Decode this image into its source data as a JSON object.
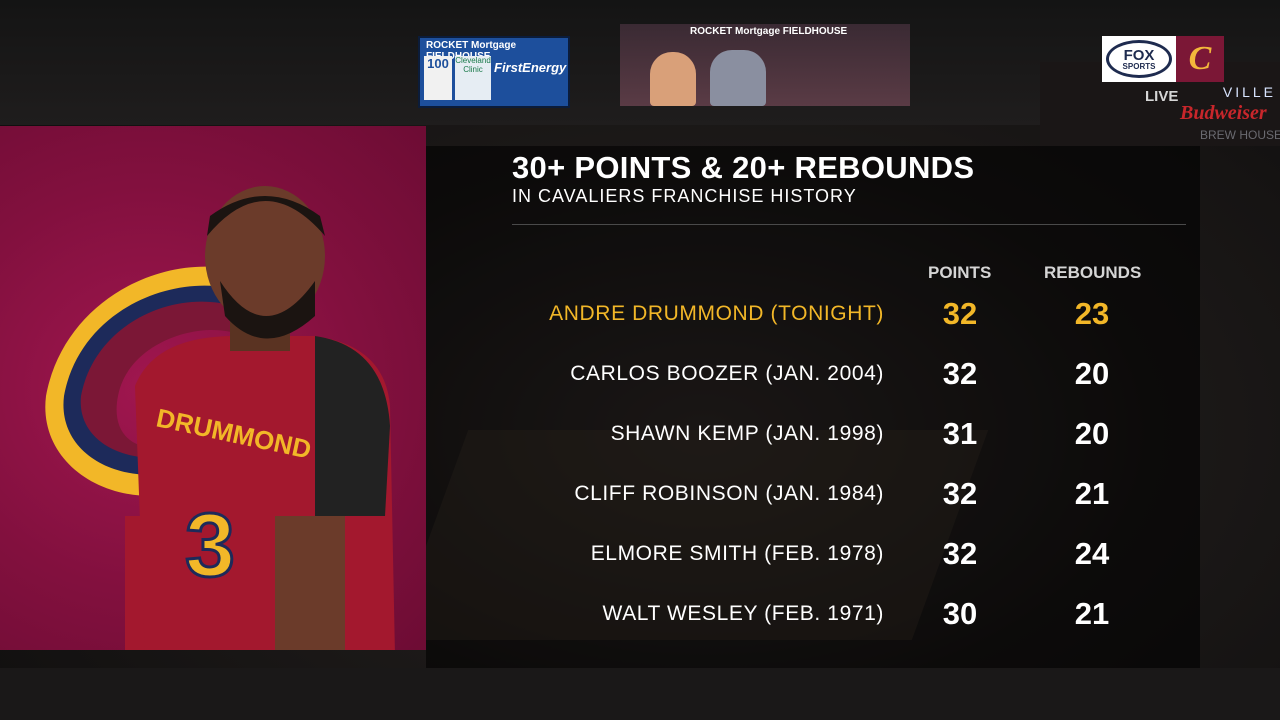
{
  "broadcast": {
    "network": "FOX SPORTS",
    "network_line1": "FOX",
    "network_line2": "SPORTS",
    "team_logo": "cavaliers-c-logo",
    "status": "LIVE"
  },
  "arena_signage": {
    "jumbotron_left": "ROCKET Mortgage FIELDHOUSE",
    "jumbotron_left_100": "100",
    "jumbotron_left_clinic": "Cleveland Clinic",
    "jumbotron_left_sponsor": "FirstEnergy",
    "jumbotron_right": "ROCKET Mortgage FIELDHOUSE",
    "wall_sign": "VILLE",
    "budweiser": "Budweiser",
    "brew_house": "BREW HOUSE"
  },
  "graphic": {
    "title": "30+ POINTS & 20+ REBOUNDS",
    "subtitle": "IN CAVALIERS FRANCHISE HISTORY",
    "columns": [
      "POINTS",
      "REBOUNDS"
    ],
    "highlight_color": "#f2b728",
    "panel_color": "#82103e",
    "rows": [
      {
        "name": "ANDRE DRUMMOND (TONIGHT)",
        "points": "32",
        "rebounds": "23",
        "highlight": true
      },
      {
        "name": "CARLOS BOOZER (JAN. 2004)",
        "points": "32",
        "rebounds": "20"
      },
      {
        "name": "SHAWN KEMP (JAN. 1998)",
        "points": "31",
        "rebounds": "20"
      },
      {
        "name": "CLIFF ROBINSON (JAN. 1984)",
        "points": "32",
        "rebounds": "21"
      },
      {
        "name": "ELMORE SMITH (FEB. 1978)",
        "points": "32",
        "rebounds": "24"
      },
      {
        "name": "WALT WESLEY (FEB. 1971)",
        "points": "30",
        "rebounds": "21"
      }
    ],
    "player_jersey_name": "DRUMMOND",
    "player_jersey_number": "3"
  }
}
